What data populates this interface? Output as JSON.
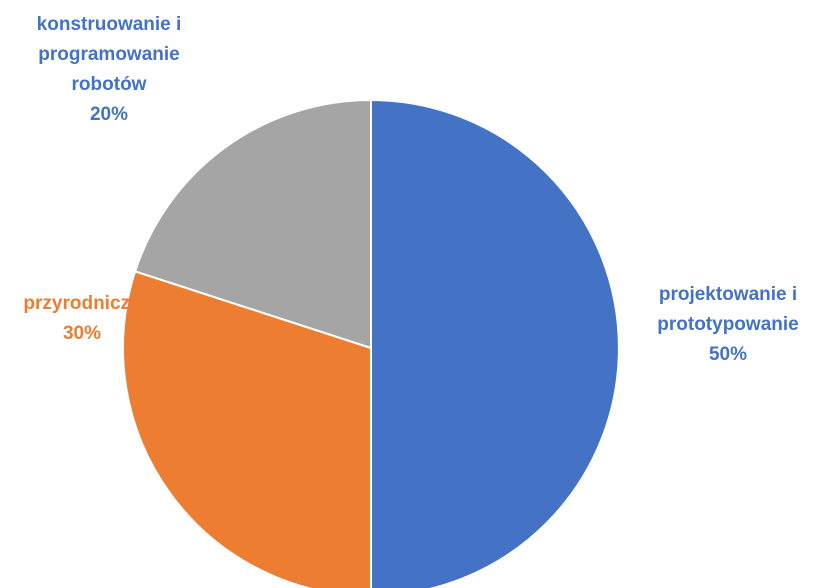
{
  "chart_data": {
    "type": "pie",
    "title": "",
    "start_angle_deg": 0,
    "direction": "clockwise",
    "slices": [
      {
        "label_lines": [
          "projektowanie i",
          "prototypowanie"
        ],
        "value": 50,
        "value_label": "50%",
        "color": "#4472C4"
      },
      {
        "label_lines": [
          "przyrodnicza"
        ],
        "value": 30,
        "value_label": "30%",
        "color": "#ED7D31"
      },
      {
        "label_lines": [
          "konstruowanie i",
          "programowanie",
          "robotów"
        ],
        "value": 20,
        "value_label": "20%",
        "color": "#A5A5A5"
      }
    ],
    "label_color_blue": "#4472C4",
    "label_color_orange": "#ED7D31",
    "edge_color": "#ffffff"
  }
}
